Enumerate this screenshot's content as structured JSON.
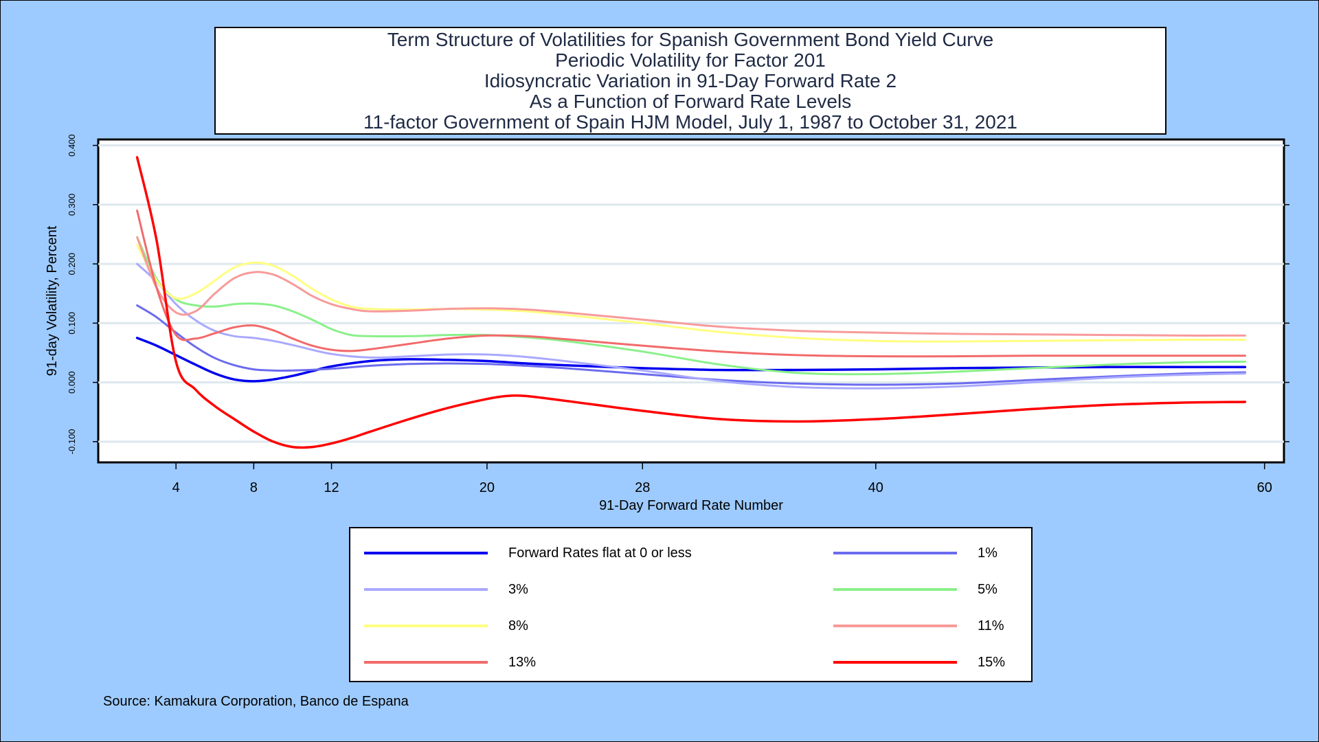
{
  "title_lines": [
    "Term Structure of Volatilities for Spanish Government Bond Yield Curve",
    "Periodic Volatility for Factor 201",
    "Idiosyncratic Variation in 91-Day Forward Rate 2",
    "As a Function of Forward Rate Levels",
    "11-factor Government of Spain HJM Model, July 1, 1987 to October 31, 2021"
  ],
  "source": "Source: Kamakura Corporation, Banco de Espana",
  "chart_data": {
    "type": "line",
    "xlabel": "91-Day Forward Rate Number",
    "ylabel": "91-day Volatility, Percent",
    "xlim": [
      0,
      61
    ],
    "ylim": [
      -0.135,
      0.41
    ],
    "x_ticks": [
      4,
      8,
      12,
      20,
      28,
      40,
      60
    ],
    "y_ticks": [
      -0.1,
      0.0,
      0.1,
      0.2,
      0.3,
      0.4
    ],
    "y_tick_labels": [
      "-0.100",
      "0.000",
      "0.100",
      "0.200",
      "0.300",
      "0.400"
    ],
    "grid": true,
    "legend_position": "bottom",
    "series": [
      {
        "name": "Forward Rates flat at 0 or less",
        "color": "#0000ee",
        "width": 3.5,
        "x": [
          2,
          3,
          4,
          5,
          6,
          7,
          8,
          9,
          10,
          11,
          12,
          14,
          16,
          18,
          20,
          22,
          24,
          28,
          32,
          36,
          40,
          44,
          48,
          52,
          56,
          59
        ],
        "y": [
          0.075,
          0.062,
          0.046,
          0.03,
          0.015,
          0.005,
          0.002,
          0.005,
          0.011,
          0.019,
          0.027,
          0.036,
          0.039,
          0.038,
          0.036,
          0.032,
          0.029,
          0.024,
          0.021,
          0.021,
          0.022,
          0.024,
          0.025,
          0.026,
          0.026,
          0.026
        ]
      },
      {
        "name": "1%",
        "color": "#6b6bef",
        "width": 3,
        "x": [
          2,
          3,
          4,
          5,
          6,
          7,
          8,
          9,
          10,
          12,
          14,
          16,
          18,
          20,
          22,
          24,
          28,
          32,
          36,
          40,
          44,
          48,
          52,
          56,
          59
        ],
        "y": [
          0.13,
          0.11,
          0.084,
          0.06,
          0.041,
          0.029,
          0.022,
          0.02,
          0.02,
          0.023,
          0.028,
          0.031,
          0.032,
          0.031,
          0.028,
          0.024,
          0.014,
          0.004,
          -0.002,
          -0.004,
          -0.002,
          0.004,
          0.01,
          0.015,
          0.017
        ]
      },
      {
        "name": "3%",
        "color": "#a9a9ff",
        "width": 3,
        "x": [
          2,
          3,
          4,
          5,
          6,
          7,
          8,
          9,
          10,
          12,
          14,
          16,
          18,
          20,
          22,
          24,
          28,
          32,
          36,
          40,
          44,
          48,
          52,
          56,
          59
        ],
        "y": [
          0.2,
          0.17,
          0.132,
          0.105,
          0.087,
          0.078,
          0.075,
          0.07,
          0.063,
          0.048,
          0.042,
          0.044,
          0.047,
          0.047,
          0.043,
          0.036,
          0.02,
          0.002,
          -0.008,
          -0.01,
          -0.007,
          0.0,
          0.008,
          0.013,
          0.015
        ]
      },
      {
        "name": "5%",
        "color": "#8af08a",
        "width": 3,
        "x": [
          2,
          3,
          4,
          5,
          6,
          7,
          8,
          9,
          10,
          11,
          12,
          13,
          14,
          16,
          18,
          20,
          22,
          24,
          28,
          32,
          36,
          40,
          44,
          48,
          52,
          56,
          59
        ],
        "y": [
          0.245,
          0.175,
          0.14,
          0.13,
          0.128,
          0.132,
          0.133,
          0.13,
          0.12,
          0.106,
          0.09,
          0.08,
          0.078,
          0.078,
          0.08,
          0.08,
          0.076,
          0.07,
          0.052,
          0.03,
          0.016,
          0.014,
          0.018,
          0.024,
          0.03,
          0.034,
          0.035
        ]
      },
      {
        "name": "8%",
        "color": "#ffff80",
        "width": 3,
        "x": [
          2,
          3,
          4,
          5,
          6,
          7,
          8,
          9,
          10,
          11,
          12,
          13,
          14,
          16,
          18,
          20,
          22,
          24,
          28,
          32,
          36,
          40,
          44,
          48,
          52,
          56,
          59
        ],
        "y": [
          0.232,
          0.172,
          0.142,
          0.15,
          0.172,
          0.194,
          0.202,
          0.197,
          0.18,
          0.158,
          0.14,
          0.128,
          0.124,
          0.123,
          0.124,
          0.123,
          0.12,
          0.114,
          0.1,
          0.085,
          0.075,
          0.07,
          0.069,
          0.07,
          0.071,
          0.072,
          0.072
        ]
      },
      {
        "name": "11%",
        "color": "#f89a9a",
        "width": 3,
        "x": [
          2,
          3,
          4,
          5,
          6,
          7,
          8,
          9,
          10,
          11,
          12,
          13,
          14,
          16,
          18,
          20,
          22,
          24,
          28,
          32,
          36,
          40,
          44,
          48,
          52,
          56,
          59
        ],
        "y": [
          0.245,
          0.16,
          0.118,
          0.12,
          0.15,
          0.176,
          0.186,
          0.182,
          0.166,
          0.146,
          0.132,
          0.124,
          0.12,
          0.121,
          0.124,
          0.125,
          0.123,
          0.118,
          0.106,
          0.094,
          0.087,
          0.084,
          0.082,
          0.081,
          0.08,
          0.079,
          0.079
        ]
      },
      {
        "name": "13%",
        "color": "#f26a6a",
        "width": 3,
        "x": [
          2,
          3,
          4,
          5,
          6,
          7,
          8,
          9,
          10,
          11,
          12,
          13,
          14,
          16,
          18,
          20,
          22,
          24,
          28,
          32,
          36,
          40,
          44,
          48,
          52,
          56,
          59
        ],
        "y": [
          0.29,
          0.16,
          0.08,
          0.074,
          0.083,
          0.093,
          0.096,
          0.088,
          0.074,
          0.062,
          0.055,
          0.053,
          0.056,
          0.065,
          0.074,
          0.079,
          0.078,
          0.073,
          0.062,
          0.052,
          0.046,
          0.044,
          0.044,
          0.045,
          0.045,
          0.045,
          0.045
        ]
      },
      {
        "name": "15%",
        "color": "#ff0000",
        "width": 3.5,
        "x": [
          2,
          3,
          4,
          5,
          6,
          7,
          8,
          9,
          10,
          11,
          12,
          13,
          14,
          16,
          18,
          20,
          21,
          22,
          24,
          28,
          32,
          36,
          40,
          44,
          48,
          52,
          56,
          59
        ],
        "y": [
          0.38,
          0.24,
          0.035,
          -0.012,
          -0.04,
          -0.062,
          -0.083,
          -0.1,
          -0.109,
          -0.109,
          -0.103,
          -0.094,
          -0.083,
          -0.062,
          -0.043,
          -0.028,
          -0.023,
          -0.023,
          -0.031,
          -0.048,
          -0.062,
          -0.066,
          -0.062,
          -0.054,
          -0.045,
          -0.038,
          -0.034,
          -0.033
        ]
      }
    ]
  }
}
